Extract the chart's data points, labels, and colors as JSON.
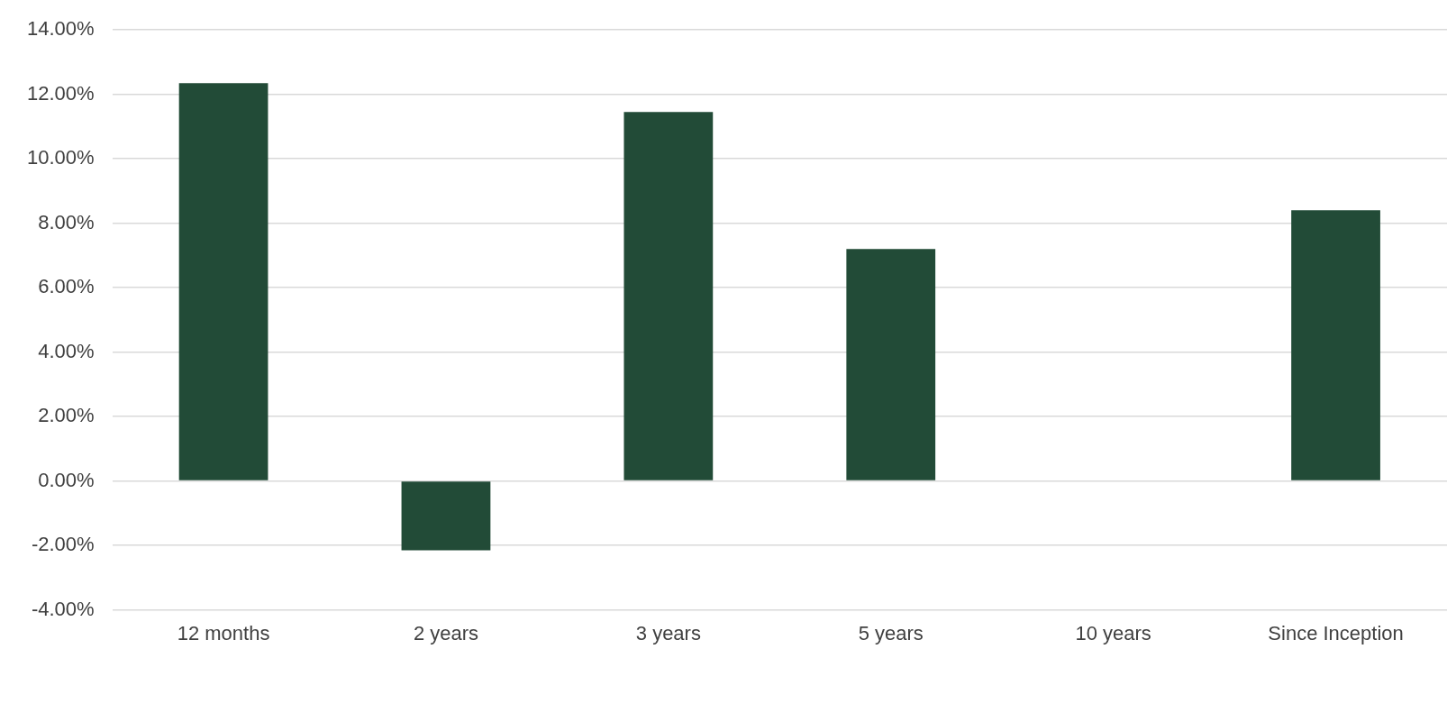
{
  "chart_data": {
    "type": "bar",
    "categories": [
      "12 months",
      "2 years",
      "3 years",
      "5 years",
      "10 years",
      "Since Inception"
    ],
    "values": [
      12.35,
      -2.15,
      11.45,
      7.2,
      null,
      8.4
    ],
    "color": "#224b37",
    "ylim": [
      -4,
      14
    ],
    "yticks": [
      {
        "value": -4,
        "label": "-4.00%"
      },
      {
        "value": -2,
        "label": "-2.00%"
      },
      {
        "value": 0,
        "label": "0.00%"
      },
      {
        "value": 2,
        "label": "2.00%"
      },
      {
        "value": 4,
        "label": "4.00%"
      },
      {
        "value": 6,
        "label": "6.00%"
      },
      {
        "value": 8,
        "label": "8.00%"
      },
      {
        "value": 10,
        "label": "10.00%"
      },
      {
        "value": 12,
        "label": "12.00%"
      },
      {
        "value": 14,
        "label": "14.00%"
      }
    ],
    "grid": "y"
  }
}
